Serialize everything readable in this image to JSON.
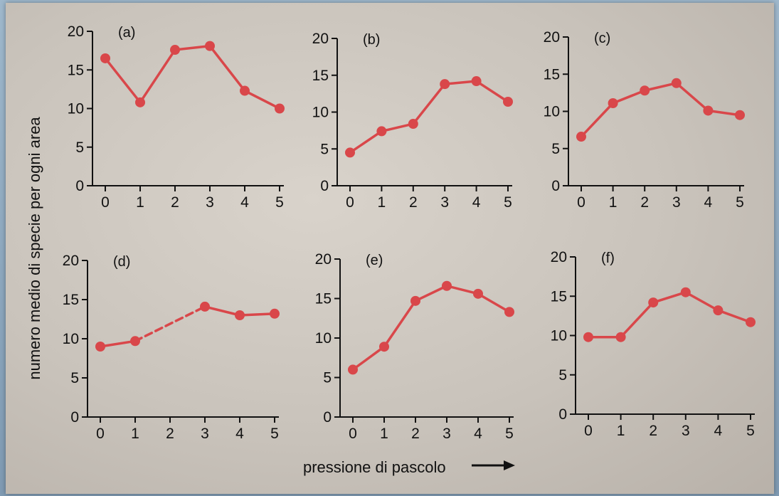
{
  "ylabel": "numero medio di specie per ogni area",
  "xlabel": "pressione di pascolo",
  "arrow": "long-right-arrow",
  "series_color": "#d9474a",
  "chart_data": [
    {
      "type": "line",
      "panel": "(a)",
      "x": [
        0,
        1,
        2,
        3,
        4,
        5
      ],
      "y": [
        16.5,
        10.8,
        17.6,
        18.1,
        12.3,
        10.0
      ],
      "ylim": [
        0,
        20
      ],
      "yticks": [
        0,
        5,
        10,
        15,
        20
      ],
      "dashed_segments": []
    },
    {
      "type": "line",
      "panel": "(b)",
      "x": [
        0,
        1,
        2,
        3,
        4,
        5
      ],
      "y": [
        4.5,
        7.4,
        8.4,
        13.8,
        14.2,
        11.4
      ],
      "ylim": [
        0,
        20
      ],
      "yticks": [
        0,
        5,
        10,
        15,
        20
      ],
      "dashed_segments": []
    },
    {
      "type": "line",
      "panel": "(c)",
      "x": [
        0,
        1,
        2,
        3,
        4,
        5
      ],
      "y": [
        6.6,
        11.1,
        12.8,
        13.8,
        10.1,
        9.5
      ],
      "ylim": [
        0,
        20
      ],
      "yticks": [
        0,
        5,
        10,
        15,
        20
      ],
      "dashed_segments": []
    },
    {
      "type": "line",
      "panel": "(d)",
      "x": [
        0,
        1,
        3,
        4,
        5
      ],
      "y": [
        9.0,
        9.7,
        14.1,
        13.0,
        13.2
      ],
      "ylim": [
        0,
        20
      ],
      "yticks": [
        0,
        5,
        10,
        15,
        20
      ],
      "dashed_segments": [
        [
          1,
          3
        ]
      ]
    },
    {
      "type": "line",
      "panel": "(e)",
      "x": [
        0,
        1,
        2,
        3,
        4,
        5
      ],
      "y": [
        6.0,
        8.9,
        14.7,
        16.6,
        15.6,
        13.3
      ],
      "ylim": [
        0,
        20
      ],
      "yticks": [
        0,
        5,
        10,
        15,
        20
      ],
      "dashed_segments": []
    },
    {
      "type": "line",
      "panel": "(f)",
      "x": [
        0,
        1,
        2,
        3,
        4,
        5
      ],
      "y": [
        9.8,
        9.8,
        14.2,
        15.5,
        13.2,
        11.7
      ],
      "ylim": [
        0,
        20
      ],
      "yticks": [
        0,
        5,
        10,
        15,
        20
      ],
      "dashed_segments": []
    }
  ],
  "xticks": [
    "0",
    "1",
    "2",
    "3",
    "4",
    "5"
  ]
}
